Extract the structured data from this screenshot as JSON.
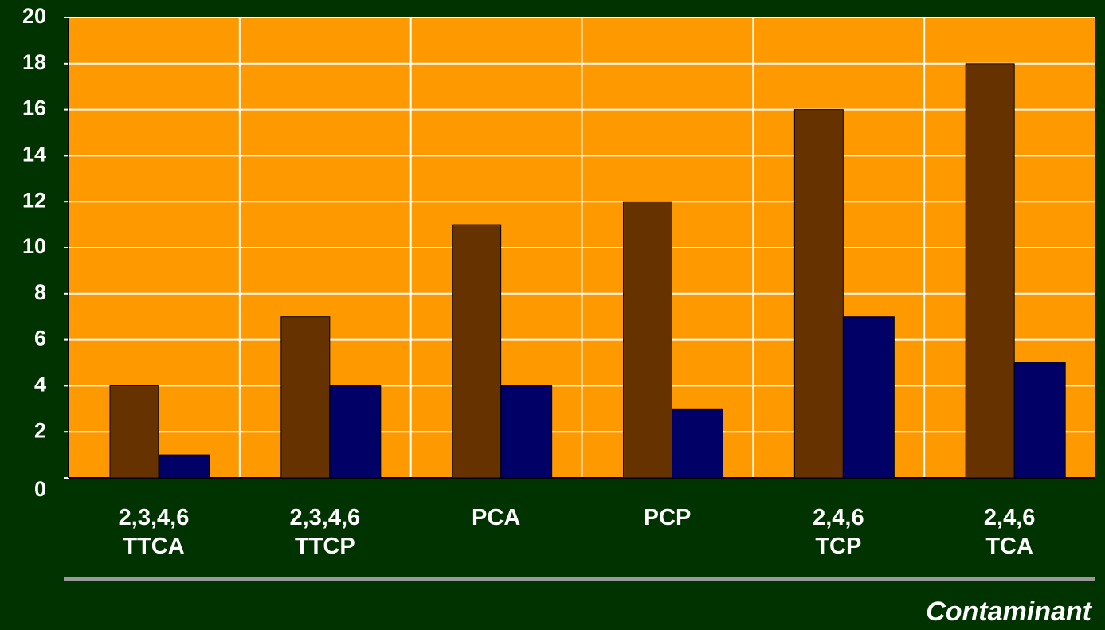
{
  "chart_data": {
    "type": "bar",
    "x_label": "Contaminant",
    "categories": [
      "2,3,4,6\nTTCA",
      "2,3,4,6\nTTCP",
      "PCA",
      "PCP",
      "2,4,6\nTCP",
      "2,4,6\nTCA"
    ],
    "series": [
      {
        "color": "#663300",
        "values": [
          4,
          7,
          11,
          12,
          16,
          18
        ]
      },
      {
        "color": "#000066",
        "values": [
          1,
          4,
          4,
          3,
          7,
          5
        ]
      }
    ],
    "ylim": [
      0,
      20
    ],
    "yticks": [
      0,
      2,
      4,
      6,
      8,
      10,
      12,
      14,
      16,
      18,
      20
    ],
    "grid": true,
    "plot_background": "#ff9900"
  }
}
